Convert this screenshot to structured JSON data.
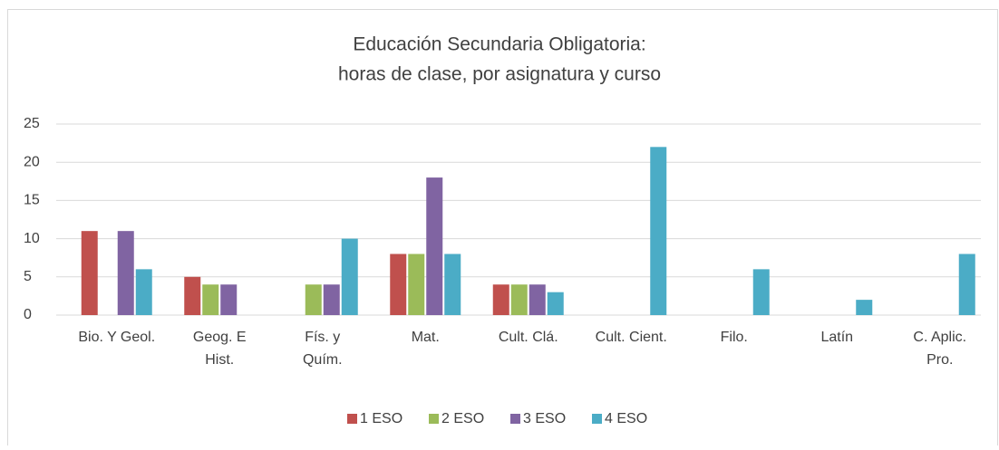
{
  "chart_data": {
    "type": "bar",
    "title": [
      "Educación Secundaria Obligatoria:",
      "horas de clase, por asignatura y curso"
    ],
    "categories": [
      "Bio. Y Geol.",
      "Geog. E\nHist.",
      "Fís. y\nQuím.",
      "Mat.",
      "Cult. Clá.",
      "Cult. Cient.",
      "Filo.",
      "Latín",
      "C. Aplic.\nPro."
    ],
    "series": [
      {
        "name": "1 ESO",
        "color": "#c0504d",
        "values": [
          11,
          5,
          0,
          8,
          4,
          0,
          0,
          0,
          0
        ]
      },
      {
        "name": "2 ESO",
        "color": "#9bbb59",
        "values": [
          0,
          4,
          4,
          8,
          4,
          0,
          0,
          0,
          0
        ]
      },
      {
        "name": "3 ESO",
        "color": "#8064a2",
        "values": [
          11,
          4,
          4,
          18,
          4,
          0,
          0,
          0,
          0
        ]
      },
      {
        "name": "4 ESO",
        "color": "#4bacc6",
        "values": [
          6,
          0,
          10,
          8,
          3,
          22,
          6,
          2,
          8
        ]
      }
    ],
    "ylim": [
      0,
      25
    ],
    "yticks": [
      0,
      5,
      10,
      15,
      20,
      25
    ],
    "grid": true,
    "legend": "bottom"
  }
}
